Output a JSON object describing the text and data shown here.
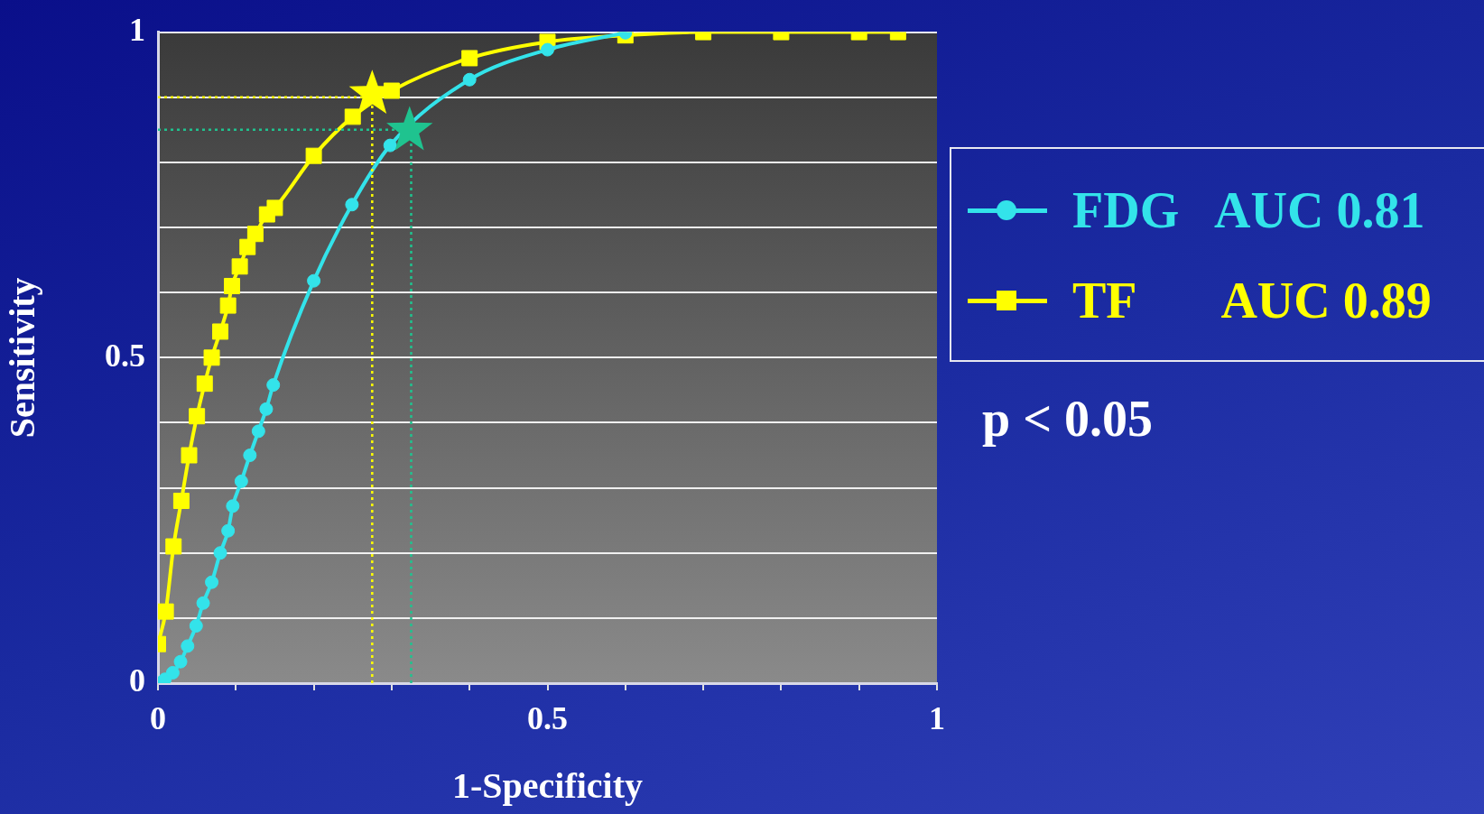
{
  "chart_data": {
    "type": "line",
    "xlabel": "1-Specificity",
    "ylabel": "Sensitivity",
    "xlim": [
      0,
      1
    ],
    "ylim": [
      0,
      1
    ],
    "xticks": [
      0,
      {
        "value": 0.1,
        "label": null
      },
      {
        "value": 0.2,
        "label": null
      },
      {
        "value": 0.3,
        "label": null
      },
      {
        "value": 0.4,
        "label": null
      },
      0.5,
      {
        "value": 0.6,
        "label": null
      },
      {
        "value": 0.7,
        "label": null
      },
      {
        "value": 0.8,
        "label": null
      },
      {
        "value": 0.9,
        "label": null
      },
      1
    ],
    "yticks": [
      0,
      {
        "value": 0.1,
        "label": null
      },
      {
        "value": 0.2,
        "label": null
      },
      {
        "value": 0.3,
        "label": null
      },
      {
        "value": 0.4,
        "label": null
      },
      0.5,
      {
        "value": 0.6,
        "label": null
      },
      {
        "value": 0.7,
        "label": null
      },
      {
        "value": 0.8,
        "label": null
      },
      {
        "value": 0.9,
        "label": null
      },
      1
    ],
    "grid": "y",
    "legend": "right",
    "line_style": "solid",
    "series": [
      {
        "name": "FDG   AUC 0.81",
        "color": "#33e3ea",
        "marker": "circle",
        "x": [
          0,
          0.009,
          0.019,
          0.029,
          0.038,
          0.049,
          0.058,
          0.069,
          0.08,
          0.09,
          0.096,
          0.107,
          0.118,
          0.129,
          0.139,
          0.148,
          0.2,
          0.249,
          0.298,
          0.4,
          0.5,
          0.6
        ],
        "values": [
          0,
          0.006,
          0.016,
          0.033,
          0.057,
          0.088,
          0.123,
          0.155,
          0.2,
          0.234,
          0.272,
          0.31,
          0.35,
          0.387,
          0.421,
          0.458,
          0.618,
          0.735,
          0.826,
          0.927,
          0.973,
          0.999
        ]
      },
      {
        "name": "TF       AUC 0.89",
        "color": "#ffff00",
        "marker": "square",
        "x": [
          0,
          0.01,
          0.02,
          0.03,
          0.04,
          0.05,
          0.06,
          0.069,
          0.08,
          0.09,
          0.095,
          0.105,
          0.115,
          0.125,
          0.14,
          0.15,
          0.2,
          0.25,
          0.3,
          0.4,
          0.5,
          0.6,
          0.7,
          0.8,
          0.9,
          0.95
        ],
        "values": [
          0.06,
          0.11,
          0.21,
          0.28,
          0.35,
          0.41,
          0.46,
          0.5,
          0.54,
          0.58,
          0.61,
          0.64,
          0.67,
          0.69,
          0.72,
          0.73,
          0.81,
          0.87,
          0.91,
          0.96,
          0.985,
          0.995,
          1,
          1,
          1,
          1
        ]
      },
      {
        "type": "scatter",
        "color": "#ffff00",
        "marker": "star",
        "x": [
          0.275
        ],
        "values": [
          0.905
        ]
      },
      {
        "type": "scatter",
        "color": "#1fc38f",
        "marker": "star",
        "x": [
          0.323
        ],
        "values": [
          0.849
        ]
      }
    ],
    "ref_lines": [
      {
        "axis": "y",
        "value": 0.9,
        "color": "#ffff00",
        "line_style": "dotted"
      },
      {
        "axis": "x",
        "value": 0.275,
        "color": "#ffff00",
        "line_style": "dotted"
      },
      {
        "axis": "y",
        "value": 0.85,
        "color": "#1fc38f",
        "line_style": "dotted"
      },
      {
        "axis": "x",
        "value": 0.325,
        "color": "#1fc38f",
        "line_style": "dotted"
      }
    ],
    "annotations": [
      "p < 0.05"
    ]
  }
}
